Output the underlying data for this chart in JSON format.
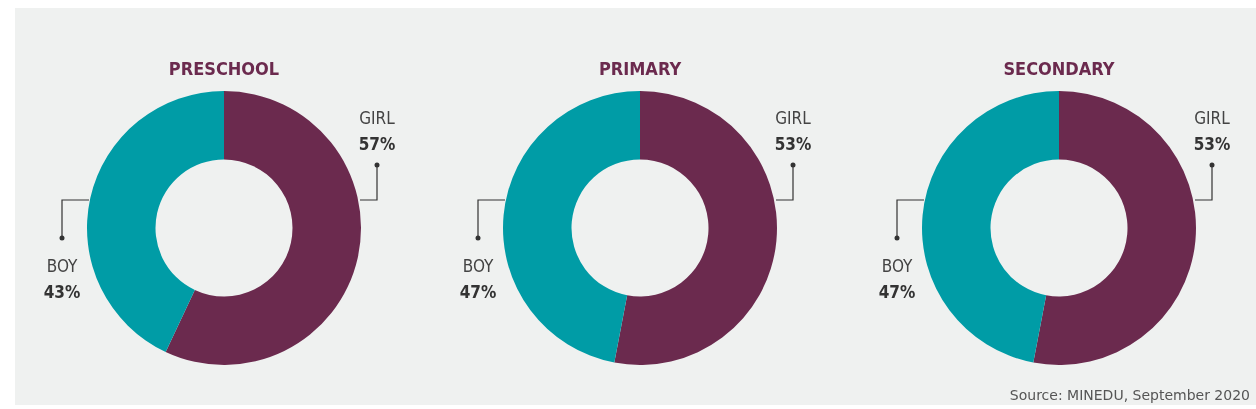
{
  "chart_data": [
    {
      "type": "donut",
      "title": "PRESCHOOL",
      "categories": [
        "GIRL",
        "BOY"
      ],
      "values": [
        57,
        43
      ],
      "colors": [
        "#6b2a4e",
        "#009ca6"
      ],
      "value_labels": [
        "57%",
        "43%"
      ]
    },
    {
      "type": "donut",
      "title": "PRIMARY",
      "categories": [
        "GIRL",
        "BOY"
      ],
      "values": [
        53,
        47
      ],
      "colors": [
        "#6b2a4e",
        "#009ca6"
      ],
      "value_labels": [
        "53%",
        "47%"
      ]
    },
    {
      "type": "donut",
      "title": "SECONDARY",
      "categories": [
        "GIRL",
        "BOY"
      ],
      "values": [
        53,
        47
      ],
      "colors": [
        "#6b2a4e",
        "#009ca6"
      ],
      "value_labels": [
        "53%",
        "47%"
      ],
      "annotations": [
        "Source: MINEDU, September 2020"
      ]
    }
  ]
}
